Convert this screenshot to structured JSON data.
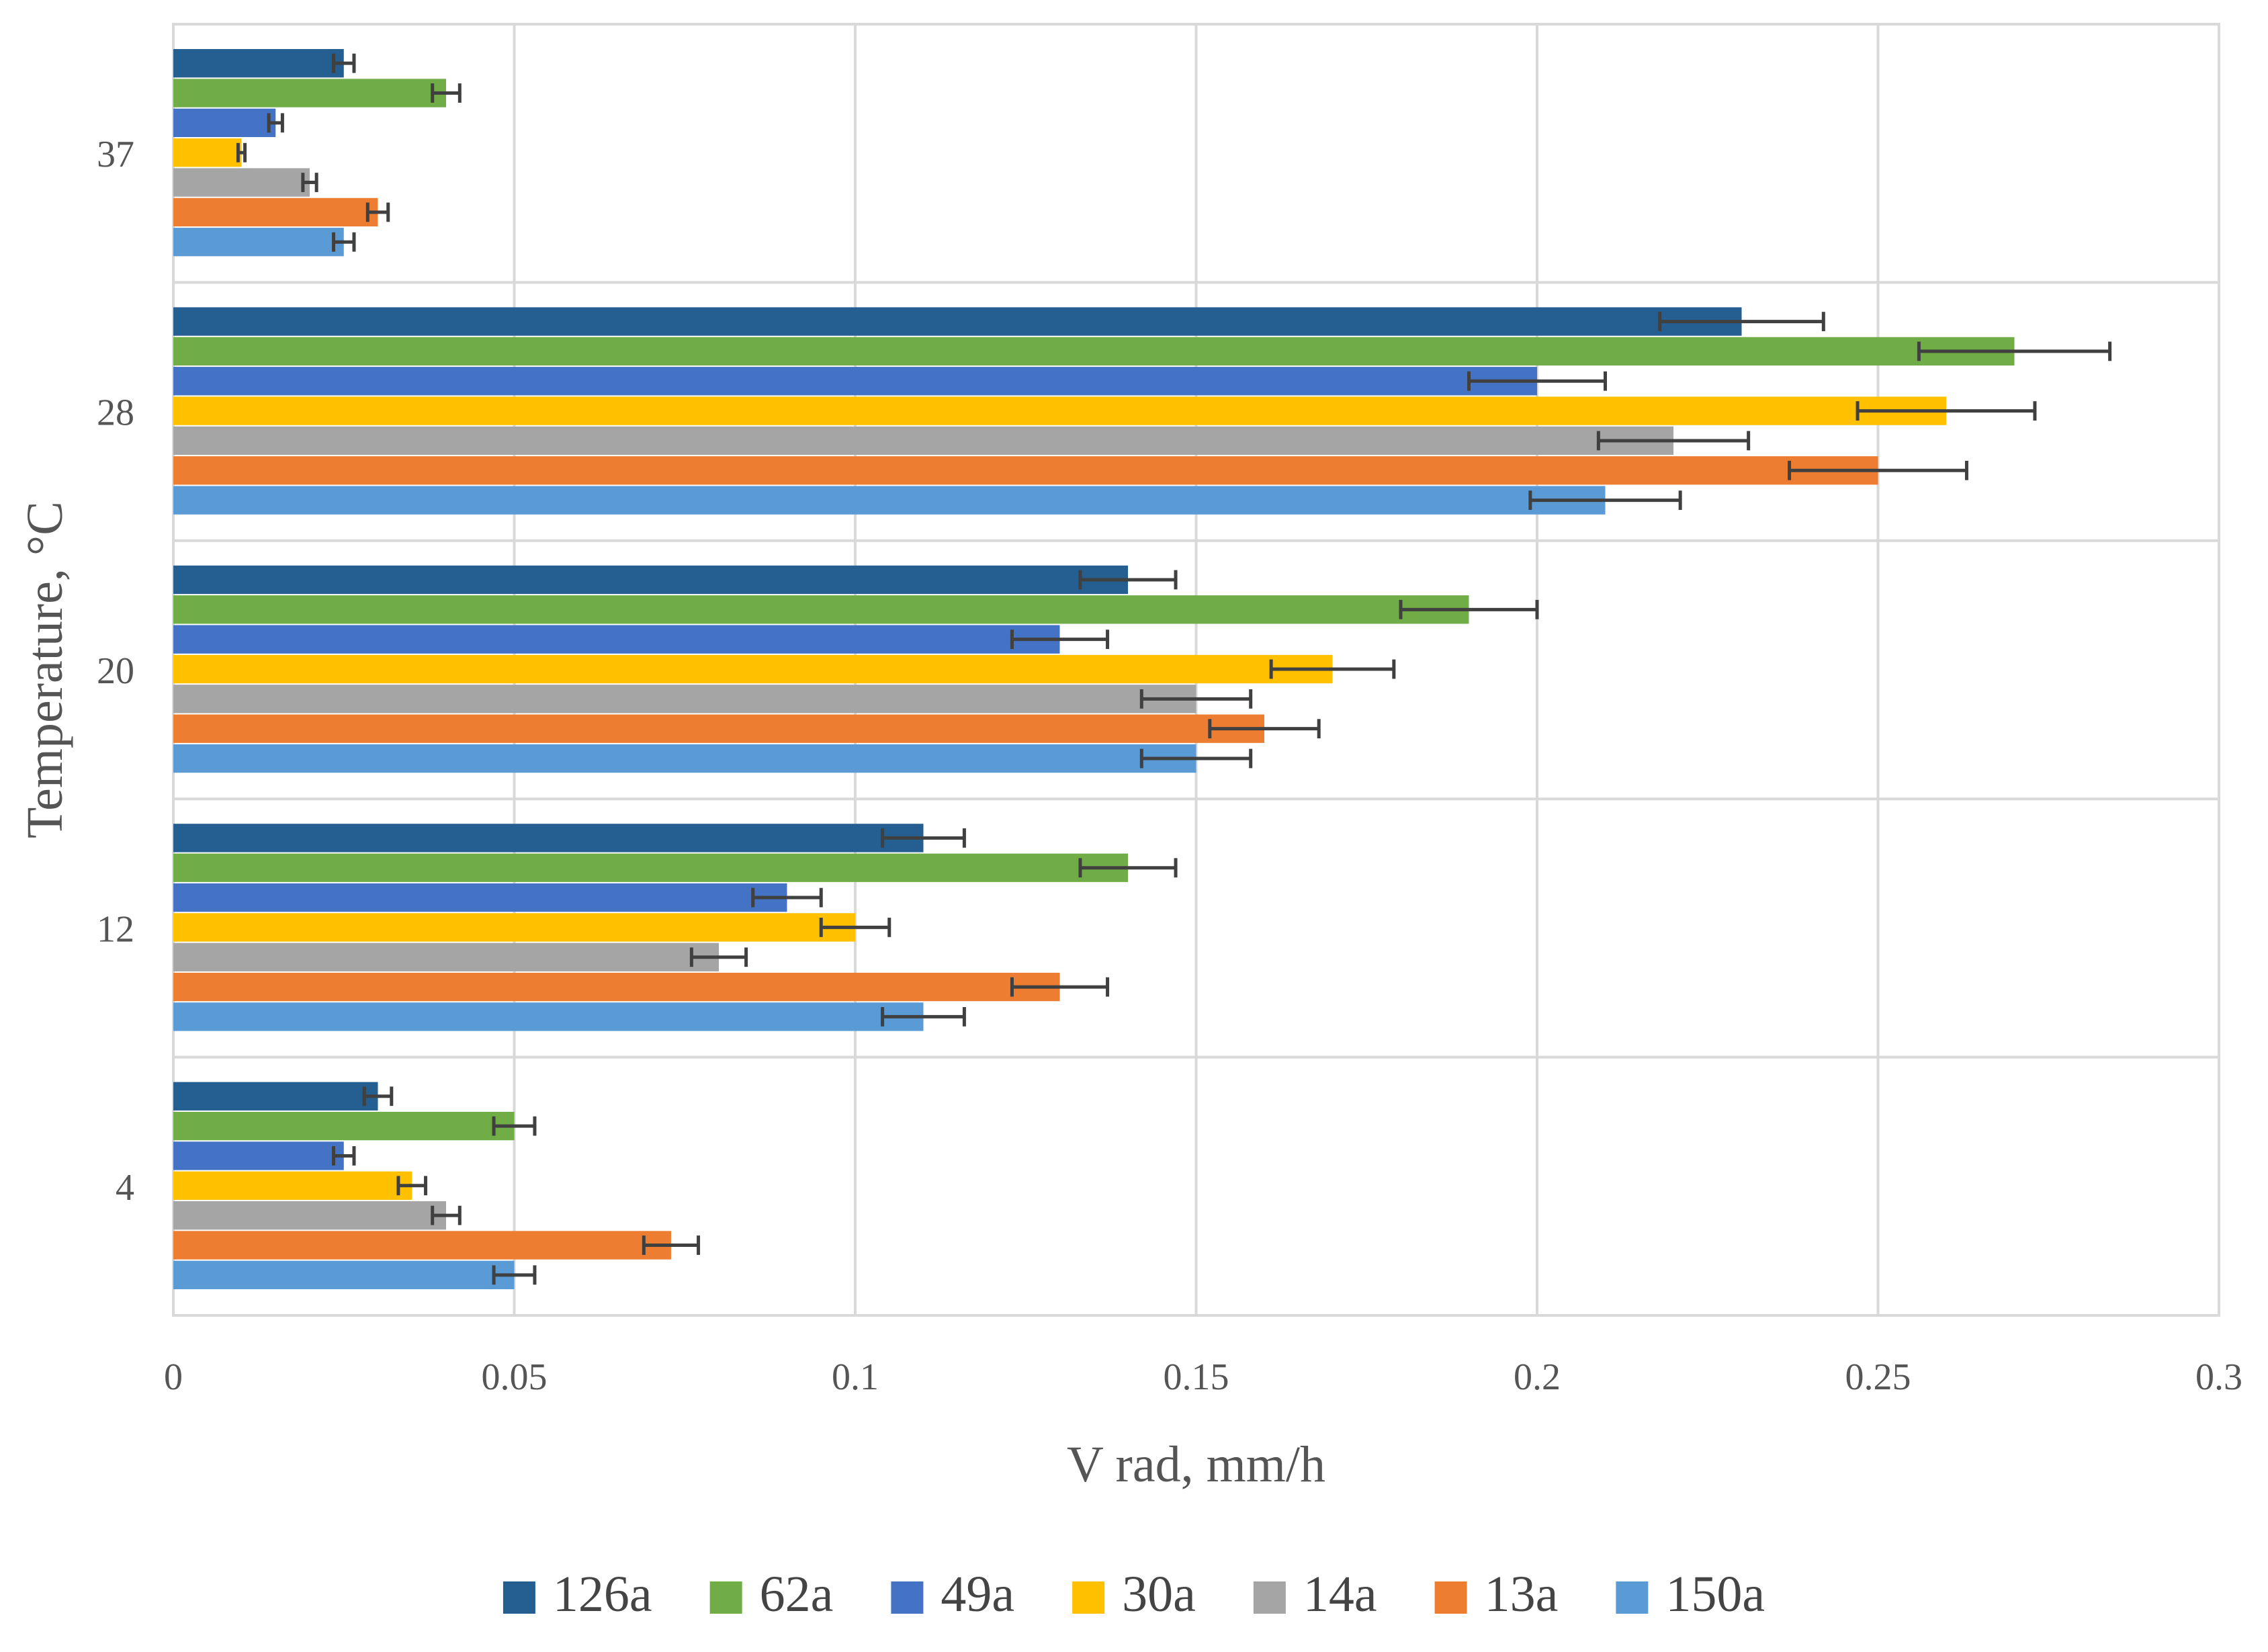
{
  "chart_data": {
    "type": "bar",
    "orientation": "horizontal",
    "xlabel": "V rad, mm/h",
    "ylabel": "Temperature, °C",
    "xlim": [
      0,
      0.3
    ],
    "x_ticks": [
      "0",
      "0.05",
      "0.1",
      "0.15",
      "0.2",
      "0.25",
      "0.3"
    ],
    "grid": true,
    "legend_position": "bottom",
    "categories": [
      "4",
      "12",
      "20",
      "28",
      "37"
    ],
    "series": [
      {
        "name": "126a",
        "color": "#255E91",
        "values": [
          0.03,
          0.11,
          0.14,
          0.23,
          0.025
        ],
        "errors": [
          0.002,
          0.006,
          0.007,
          0.012,
          0.0015
        ]
      },
      {
        "name": "62a",
        "color": "#70AD47",
        "values": [
          0.05,
          0.14,
          0.19,
          0.27,
          0.04
        ],
        "errors": [
          0.003,
          0.007,
          0.01,
          0.014,
          0.002
        ]
      },
      {
        "name": "49a",
        "color": "#4472C4",
        "values": [
          0.025,
          0.09,
          0.13,
          0.2,
          0.015
        ],
        "errors": [
          0.0015,
          0.005,
          0.007,
          0.01,
          0.001
        ]
      },
      {
        "name": "30a",
        "color": "#FFC000",
        "values": [
          0.035,
          0.1,
          0.17,
          0.26,
          0.01
        ],
        "errors": [
          0.002,
          0.005,
          0.009,
          0.013,
          0.0005
        ]
      },
      {
        "name": "14a",
        "color": "#A5A5A5",
        "values": [
          0.04,
          0.08,
          0.15,
          0.22,
          0.02
        ],
        "errors": [
          0.002,
          0.004,
          0.008,
          0.011,
          0.001
        ]
      },
      {
        "name": "13a",
        "color": "#ED7D31",
        "values": [
          0.073,
          0.13,
          0.16,
          0.25,
          0.03
        ],
        "errors": [
          0.004,
          0.007,
          0.008,
          0.013,
          0.0015
        ]
      },
      {
        "name": "150a",
        "color": "#5B9BD5",
        "values": [
          0.05,
          0.11,
          0.15,
          0.21,
          0.025
        ],
        "errors": [
          0.003,
          0.006,
          0.008,
          0.011,
          0.0015
        ]
      }
    ]
  }
}
